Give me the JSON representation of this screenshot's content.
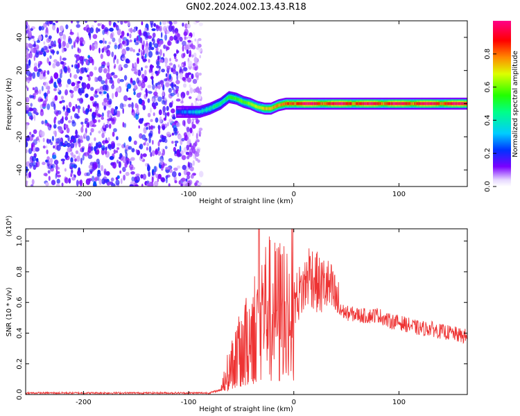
{
  "title": "GN02.2024.002.13.43.R18",
  "chart_data": [
    {
      "type": "heatmap",
      "ylabel": "Frequency (Hz)",
      "xlabel": "Height of straight line (km)",
      "x_ticks": [
        -200,
        -100,
        0,
        100
      ],
      "y_ticks": [
        -40,
        -20,
        0,
        20,
        40
      ],
      "xlim": [
        -255,
        165
      ],
      "ylim": [
        -50,
        50
      ],
      "colorbar": {
        "label": "Normalized spectral amplitude",
        "ticks": [
          "0.0",
          "0.2",
          "0.4",
          "0.6",
          "0.8"
        ],
        "range": [
          0,
          1
        ]
      },
      "regions": [
        {
          "name": "noise",
          "x": [
            -255,
            -88
          ],
          "y": [
            -50,
            50
          ],
          "amplitude": [
            0.05,
            0.2
          ]
        },
        {
          "name": "signal",
          "x": [
            -112,
            165
          ],
          "track": [
            [
              -112,
              -5
            ],
            [
              -100,
              -5
            ],
            [
              -90,
              -5
            ],
            [
              -80,
              -3
            ],
            [
              -70,
              0
            ],
            [
              -62,
              4
            ],
            [
              -55,
              3
            ],
            [
              -48,
              1
            ],
            [
              -42,
              0
            ],
            [
              -35,
              -2
            ],
            [
              -28,
              -3
            ],
            [
              -22,
              -3
            ],
            [
              -15,
              -1
            ],
            [
              -8,
              0
            ],
            [
              0,
              0
            ],
            [
              20,
              0
            ],
            [
              165,
              0
            ]
          ],
          "amplitude_rises_from": 0.2,
          "amplitude_peak": 1.0
        }
      ]
    },
    {
      "type": "line",
      "ylabel": "SNR (10 * v/v)",
      "xlabel": "Height of straight line (km)",
      "y_multiplier": "(x10⁴)",
      "x_ticks": [
        -200,
        -100,
        0,
        100
      ],
      "y_ticks": [
        "0.0",
        "0.2",
        "0.4",
        "0.6",
        "0.8",
        "1.0"
      ],
      "xlim": [
        -255,
        165
      ],
      "ylim": [
        0,
        1.08
      ],
      "color": "#ee3333",
      "x": [
        -255,
        -200,
        -150,
        -100,
        -80,
        -70,
        -65,
        -60,
        -55,
        -50,
        -45,
        -40,
        -35,
        -32,
        -30,
        -25,
        -20,
        -15,
        -10,
        -5,
        0,
        5,
        10,
        15,
        20,
        25,
        30,
        35,
        40,
        45,
        50,
        60,
        70,
        80,
        90,
        100,
        110,
        120,
        130,
        140,
        150,
        160,
        165
      ],
      "y": [
        0.01,
        0.01,
        0.01,
        0.01,
        0.01,
        0.03,
        0.12,
        0.18,
        0.25,
        0.3,
        0.35,
        0.42,
        0.48,
        0.6,
        0.55,
        0.58,
        0.55,
        0.55,
        0.58,
        0.62,
        0.6,
        0.66,
        0.7,
        0.8,
        0.75,
        0.7,
        0.72,
        0.68,
        0.62,
        0.55,
        0.53,
        0.52,
        0.51,
        0.52,
        0.48,
        0.47,
        0.45,
        0.43,
        0.43,
        0.41,
        0.4,
        0.38,
        0.38
      ]
    }
  ]
}
